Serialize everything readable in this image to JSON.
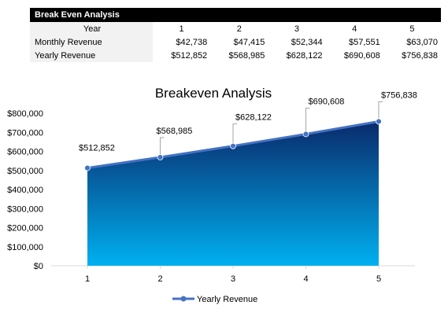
{
  "table": {
    "title": "Break Even Analysis",
    "year_label": "Year",
    "years": [
      "1",
      "2",
      "3",
      "4",
      "5"
    ],
    "rows": [
      {
        "label": "Monthly Revenue",
        "values": [
          "$42,738",
          "$47,415",
          "$52,344",
          "$57,551",
          "$63,070"
        ]
      },
      {
        "label": "Yearly Revenue",
        "values": [
          "$512,852",
          "$568,985",
          "$628,122",
          "$690,608",
          "$756,838"
        ]
      }
    ]
  },
  "chart_data": {
    "type": "area",
    "title": "Breakeven Analysis",
    "xlabel": "",
    "ylabel": "",
    "categories": [
      "1",
      "2",
      "3",
      "4",
      "5"
    ],
    "series": [
      {
        "name": "Yearly Revenue",
        "values": [
          512852,
          568985,
          628122,
          690608,
          756838
        ]
      }
    ],
    "data_labels": [
      "$512,852",
      "$568,985",
      "$628,122",
      "$690,608",
      "$756,838"
    ],
    "y_ticks": [
      "$0",
      "$100,000",
      "$200,000",
      "$300,000",
      "$400,000",
      "$500,000",
      "$600,000",
      "$700,000",
      "$800,000"
    ],
    "ylim": [
      0,
      800000
    ],
    "grid": false,
    "legend_position": "bottom",
    "colors": {
      "line": "#4472c4",
      "fill_top": "#0a2a6b",
      "fill_bottom": "#00b0f0"
    }
  }
}
